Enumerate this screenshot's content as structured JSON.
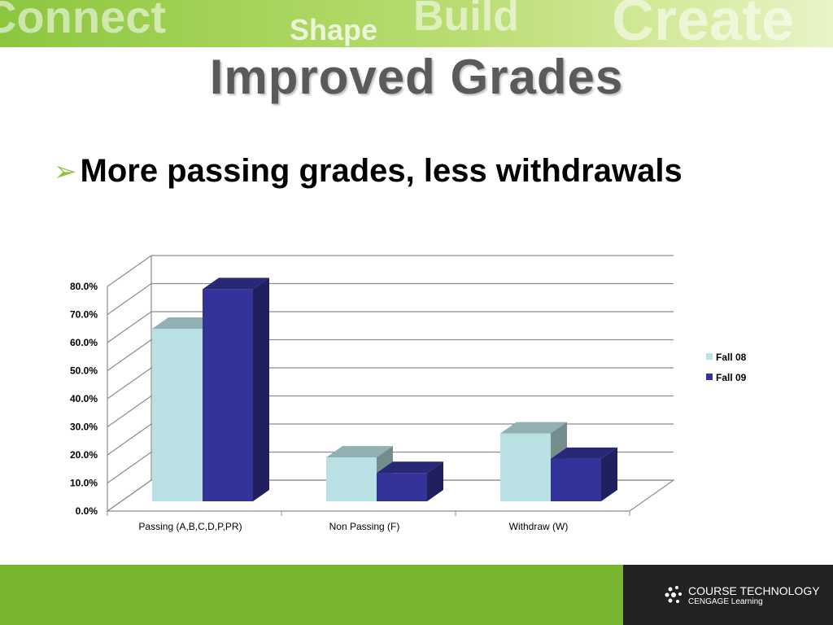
{
  "banner": {
    "words": [
      "Connect",
      "Shape",
      "Build",
      "Create"
    ],
    "color": "#8cc63f"
  },
  "title": "Improved Grades",
  "bullet": {
    "icon": "arrow-bullet-icon",
    "text": "More passing grades, less withdrawals"
  },
  "chart_data": {
    "type": "bar",
    "style": "3d-clustered-column",
    "categories": [
      "Passing (A,B,C,D,P,PR)",
      "Non Passing (F)",
      "Withdraw (W)"
    ],
    "series": [
      {
        "name": "Fall 08",
        "values": [
          61.0,
          15.5,
          24.0
        ],
        "color": "#b9e1e3"
      },
      {
        "name": "Fall 09",
        "values": [
          75.0,
          10.0,
          15.0
        ],
        "color": "#333399"
      }
    ],
    "y_ticks": [
      "0.0%",
      "10.0%",
      "20.0%",
      "30.0%",
      "40.0%",
      "50.0%",
      "60.0%",
      "70.0%",
      "80.0%"
    ],
    "ylim": [
      0,
      80
    ],
    "grid": true,
    "legend": "right"
  },
  "footer": {
    "brand_line1": "COURSE TECHNOLOGY",
    "brand_line2": "CENGAGE Learning"
  }
}
